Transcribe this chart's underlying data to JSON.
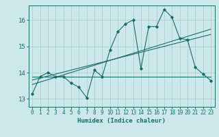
{
  "title": "",
  "xlabel": "Humidex (Indice chaleur)",
  "background_color": "#cce8ea",
  "grid_color": "#aacfd2",
  "line_color": "#1a6b6b",
  "xlim": [
    -0.5,
    23.5
  ],
  "ylim": [
    12.7,
    16.55
  ],
  "yticks": [
    13,
    14,
    15,
    16
  ],
  "xticks": [
    0,
    1,
    2,
    3,
    4,
    5,
    6,
    7,
    8,
    9,
    10,
    11,
    12,
    13,
    14,
    15,
    16,
    17,
    18,
    19,
    20,
    21,
    22,
    23
  ],
  "main_x": [
    0,
    1,
    2,
    3,
    4,
    5,
    6,
    7,
    8,
    9,
    10,
    11,
    12,
    13,
    14,
    15,
    16,
    17,
    18,
    19,
    20,
    21,
    22,
    23
  ],
  "main_y": [
    13.2,
    13.85,
    14.0,
    13.85,
    13.85,
    13.6,
    13.45,
    13.05,
    14.1,
    13.85,
    14.85,
    15.55,
    15.85,
    16.0,
    14.15,
    15.75,
    15.75,
    16.4,
    16.1,
    15.3,
    15.25,
    14.2,
    13.95,
    13.7
  ],
  "reg_line1_x": [
    0,
    23
  ],
  "reg_line1_y": [
    13.55,
    15.65
  ],
  "reg_line2_x": [
    0,
    23
  ],
  "reg_line2_y": [
    13.72,
    15.45
  ],
  "flat_line_x": [
    0,
    23
  ],
  "flat_line_y": [
    13.85,
    13.85
  ]
}
